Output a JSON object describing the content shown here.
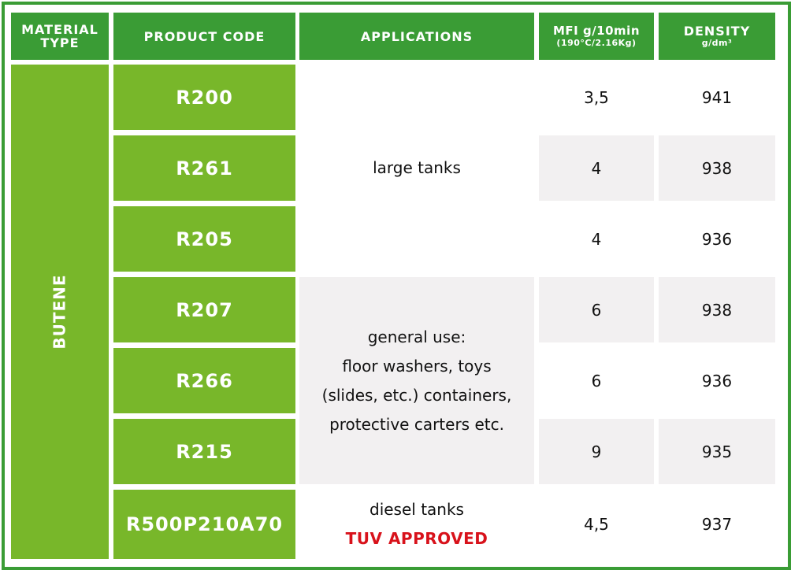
{
  "headers": {
    "material_type": "MATERIAL TYPE",
    "product_code": "PRODUCT CODE",
    "applications": "APPLICATIONS",
    "mfi_line1": "MFI g/10min",
    "mfi_line2": "(190°C/2.16Kg)",
    "density_line1": "DENSITY",
    "density_line2": "g/dm³"
  },
  "material_type": "BUTENE",
  "applications": {
    "large_tanks": "large tanks",
    "general_use": [
      "general use:",
      "floor washers, toys",
      "(slides, etc.) containers,",
      "protective carters etc."
    ],
    "diesel_tanks": "diesel tanks",
    "tuv_approved": "TUV APPROVED"
  },
  "rows": [
    {
      "code": "R200",
      "mfi": "3,5",
      "density": "941"
    },
    {
      "code": "R261",
      "mfi": "4",
      "density": "938"
    },
    {
      "code": "R205",
      "mfi": "4",
      "density": "936"
    },
    {
      "code": "R207",
      "mfi": "6",
      "density": "938"
    },
    {
      "code": "R266",
      "mfi": "6",
      "density": "936"
    },
    {
      "code": "R215",
      "mfi": "9",
      "density": "935"
    },
    {
      "code": "R500P210A70",
      "mfi": "4,5",
      "density": "937"
    }
  ],
  "colors": {
    "header_green": "#3a9c35",
    "cell_green": "#78b72a",
    "alt_row": "#f2f0f1",
    "accent_red": "#d8121b"
  }
}
